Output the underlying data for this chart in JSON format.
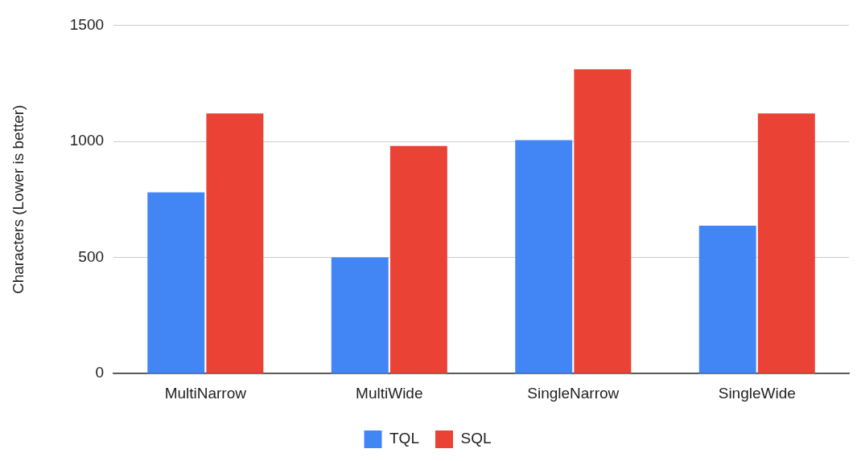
{
  "chart_data": {
    "type": "bar",
    "ylabel": "Characters (Lower is better)",
    "categories": [
      "MultiNarrow",
      "MultiWide",
      "SingleNarrow",
      "SingleWide"
    ],
    "series": [
      {
        "name": "TQL",
        "color": "#4285f4",
        "values": [
          780,
          500,
          1005,
          637
        ]
      },
      {
        "name": "SQL",
        "color": "#ea4335",
        "values": [
          1120,
          980,
          1310,
          1120
        ]
      }
    ],
    "ylim": [
      0,
      1500
    ],
    "yticks": [
      0,
      500,
      1000,
      1500
    ],
    "grid": "y",
    "legend": "bottom"
  }
}
